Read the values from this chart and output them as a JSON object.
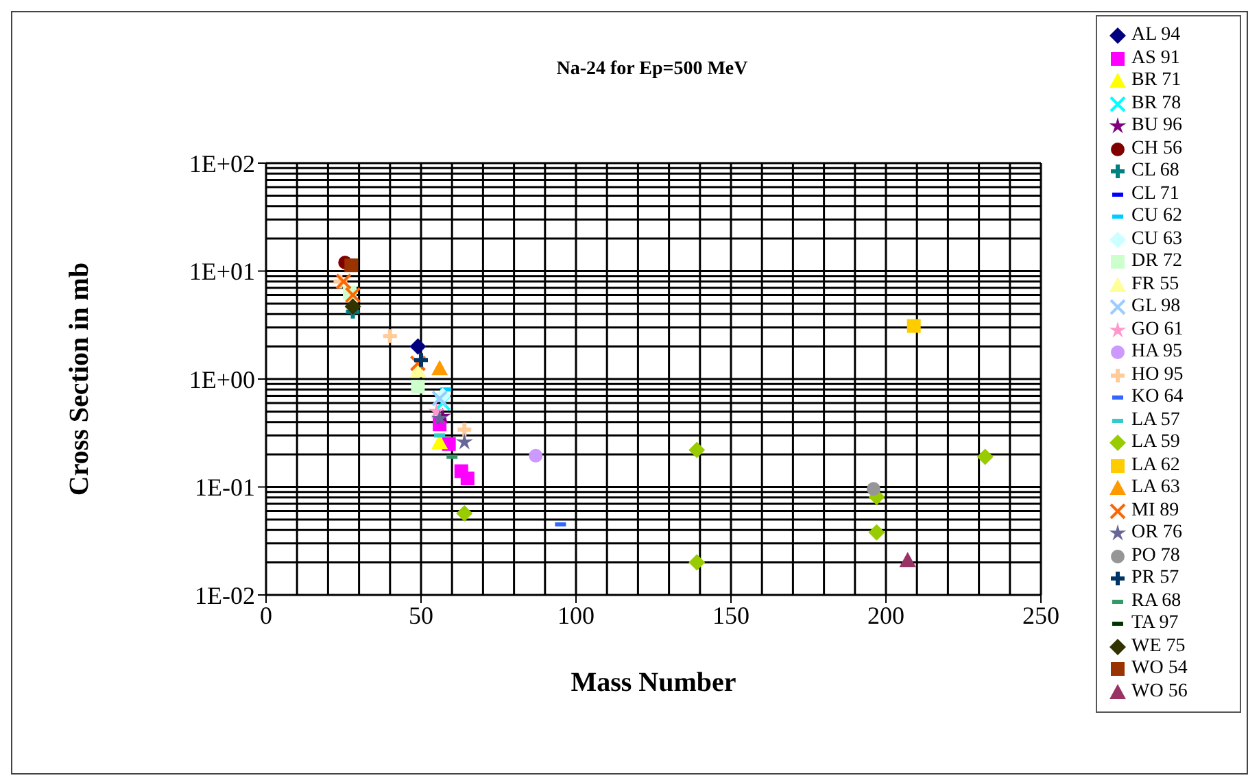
{
  "chart_data": {
    "type": "scatter",
    "title": "Na-24 for Ep=500 MeV",
    "xlabel": "Mass Number",
    "ylabel": "Cross Section in mb",
    "log": "y",
    "grid": true,
    "legend": "right",
    "xlim": [
      0,
      250
    ],
    "xticks": [
      0,
      50,
      100,
      150,
      200,
      250
    ],
    "ylim": [
      0.01,
      100
    ],
    "yticks": [
      {
        "value": 0.01,
        "label": "1E-02"
      },
      {
        "value": 0.1,
        "label": "1E-01"
      },
      {
        "value": 1,
        "label": "1E+00"
      },
      {
        "value": 10,
        "label": "1E+01"
      },
      {
        "value": 100,
        "label": "1E+02"
      }
    ],
    "series": [
      {
        "name": "AL 94",
        "color": "#000080",
        "marker": "diamond",
        "x": [
          49
        ],
        "values": [
          2.0
        ]
      },
      {
        "name": "AS 91",
        "color": "#ff00ff",
        "marker": "square",
        "x": [
          56,
          59,
          63,
          65
        ],
        "values": [
          0.38,
          0.25,
          0.14,
          0.12
        ]
      },
      {
        "name": "BR 71",
        "color": "#ffff00",
        "marker": "triangle",
        "x": [
          56
        ],
        "values": [
          0.26
        ]
      },
      {
        "name": "BR 78",
        "color": "#00ffff",
        "marker": "x",
        "x": [
          57
        ],
        "values": [
          0.6
        ]
      },
      {
        "name": "BU 96",
        "color": "#800080",
        "marker": "star",
        "x": [
          57
        ],
        "values": [
          0.45
        ]
      },
      {
        "name": "CH 56",
        "color": "#800000",
        "marker": "circle",
        "x": [
          25.5
        ],
        "values": [
          12
        ]
      },
      {
        "name": "CL 68",
        "color": "#008080",
        "marker": "cross",
        "x": [
          28
        ],
        "values": [
          4.2
        ]
      },
      {
        "name": "CL 71",
        "color": "#0000ff",
        "values": [
          null
        ]
      },
      {
        "name": "CU 62",
        "color": "#00ccff",
        "x": [
          58
        ],
        "values": [
          0.8
        ]
      },
      {
        "name": "CU 63",
        "color": "#ccffff",
        "marker": "diamond",
        "x": [
          57
        ],
        "values": [
          0.7
        ]
      },
      {
        "name": "DR 72",
        "color": "#ccffcc",
        "marker": "square",
        "x": [
          27,
          49
        ],
        "values": [
          6.3,
          0.85
        ]
      },
      {
        "name": "FR 55",
        "color": "#ffff99",
        "marker": "triangle",
        "x": [
          49
        ],
        "values": [
          1.2
        ]
      },
      {
        "name": "GL 98",
        "color": "#99ccff",
        "marker": "x",
        "x": [
          56
        ],
        "values": [
          0.66
        ]
      },
      {
        "name": "GO 61",
        "color": "#ff99cc",
        "marker": "star",
        "x": [
          55
        ],
        "values": [
          0.5
        ]
      },
      {
        "name": "HA 95",
        "color": "#cc99ff",
        "marker": "circle",
        "x": [
          87
        ],
        "values": [
          0.195
        ]
      },
      {
        "name": "HO 95",
        "color": "#ffcc99",
        "marker": "cross",
        "x": [
          24,
          40,
          64
        ],
        "values": [
          8,
          2.5,
          0.34
        ]
      },
      {
        "name": "KO 64",
        "color": "#3366ff",
        "x": [
          95
        ],
        "values": [
          0.045
        ]
      },
      {
        "name": "LA 57",
        "color": "#33cccc",
        "x": [
          56
        ],
        "values": [
          0.3
        ]
      },
      {
        "name": "LA 59",
        "color": "#99cc00",
        "marker": "diamond",
        "x": [
          64,
          139,
          139,
          197,
          197,
          232
        ],
        "values": [
          0.057,
          0.22,
          0.02,
          0.081,
          0.038,
          0.19
        ]
      },
      {
        "name": "LA 62",
        "color": "#ffcc00",
        "marker": "square",
        "x": [
          209
        ],
        "values": [
          3.1
        ]
      },
      {
        "name": "LA 63",
        "color": "#ff9900",
        "marker": "triangle",
        "x": [
          56
        ],
        "values": [
          1.26
        ]
      },
      {
        "name": "MI 89",
        "color": "#ff6600",
        "marker": "x",
        "x": [
          25,
          28,
          49
        ],
        "values": [
          8,
          6,
          1.4
        ]
      },
      {
        "name": "OR 76",
        "color": "#666699",
        "marker": "star",
        "x": [
          56,
          64
        ],
        "values": [
          0.43,
          0.26
        ]
      },
      {
        "name": "PO 78",
        "color": "#969696",
        "marker": "circle",
        "x": [
          196
        ],
        "values": [
          0.096
        ]
      },
      {
        "name": "PR 57",
        "color": "#003366",
        "marker": "cross",
        "x": [
          50
        ],
        "values": [
          1.5
        ]
      },
      {
        "name": "RA 68",
        "color": "#339966",
        "x": [
          60
        ],
        "values": [
          0.19
        ]
      },
      {
        "name": "TA 97",
        "color": "#003300",
        "values": [
          null
        ]
      },
      {
        "name": "WE 75",
        "color": "#333300",
        "marker": "diamond",
        "x": [
          28
        ],
        "values": [
          4.7
        ]
      },
      {
        "name": "WO 54",
        "color": "#993300",
        "marker": "square",
        "x": [
          27.5
        ],
        "values": [
          11.3
        ]
      },
      {
        "name": "WO 56",
        "color": "#993366",
        "marker": "triangle",
        "x": [
          207
        ],
        "values": [
          0.021
        ]
      }
    ]
  }
}
